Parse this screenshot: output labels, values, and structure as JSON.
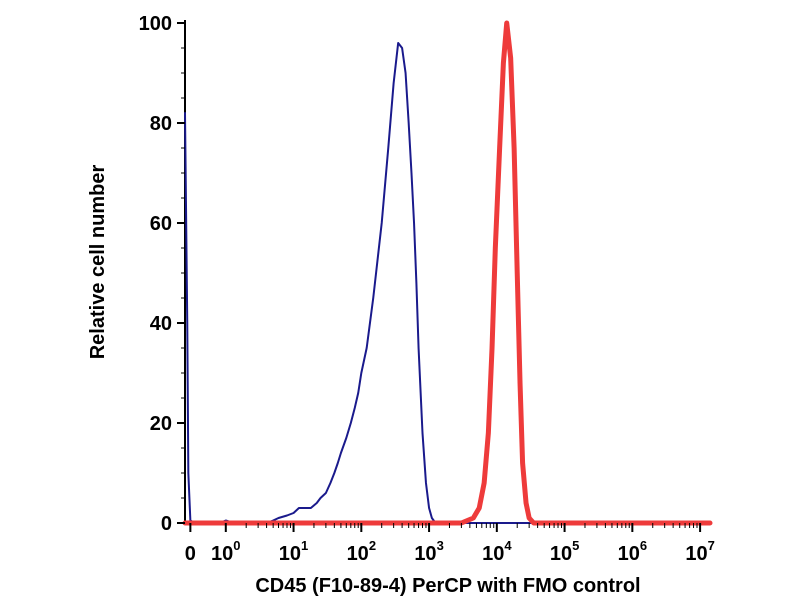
{
  "chart_data": {
    "type": "line",
    "title": "",
    "xlabel": "CD45 (F10-89-4) PerCP with FMO control",
    "ylabel": "Relative cell number",
    "x_scale": "log",
    "xlim": [
      0.25,
      14000000
    ],
    "ylim": [
      0,
      100
    ],
    "x_ticks": [
      {
        "base": "0",
        "exp": "",
        "value": 0.3
      },
      {
        "base": "10",
        "exp": "0",
        "value": 1
      },
      {
        "base": "10",
        "exp": "1",
        "value": 10
      },
      {
        "base": "10",
        "exp": "2",
        "value": 100
      },
      {
        "base": "10",
        "exp": "3",
        "value": 1000
      },
      {
        "base": "10",
        "exp": "4",
        "value": 10000
      },
      {
        "base": "10",
        "exp": "5",
        "value": 100000
      },
      {
        "base": "10",
        "exp": "6",
        "value": 1000000
      },
      {
        "base": "10",
        "exp": "7",
        "value": 10000000
      }
    ],
    "y_ticks": [
      "0",
      "20",
      "40",
      "60",
      "80",
      "100"
    ],
    "grid": false,
    "legend": "none",
    "series": [
      {
        "color": "#1a1a8c",
        "stroke": "thin",
        "x": [
          0.25,
          0.27,
          0.28,
          0.3,
          0.35,
          0.5,
          0.8,
          1.0,
          1.3,
          2,
          3,
          4,
          5,
          6,
          8,
          10,
          12,
          14,
          18,
          22,
          25,
          30,
          35,
          40,
          45,
          50,
          60,
          70,
          80,
          90,
          100,
          120,
          150,
          200,
          250,
          300,
          350,
          400,
          450,
          500,
          550,
          600,
          650,
          700,
          800,
          900,
          1000,
          1100,
          1200,
          1400,
          1700,
          2000,
          14000000
        ],
        "y": [
          82,
          40,
          10,
          0.5,
          0,
          0,
          0,
          0.5,
          0,
          0,
          0,
          0,
          0.5,
          1,
          1.5,
          2,
          3,
          3,
          3,
          4,
          5,
          6,
          8,
          10,
          12,
          14,
          17,
          20,
          23,
          26,
          30,
          35,
          45,
          60,
          75,
          88,
          96,
          95,
          90,
          80,
          70,
          60,
          48,
          35,
          18,
          8,
          3,
          1,
          0.3,
          0,
          0,
          0,
          0
        ]
      },
      {
        "color": "#ee3b3b",
        "stroke": "thick",
        "x": [
          0.25,
          1000,
          3000,
          4500,
          5500,
          6500,
          7500,
          8500,
          9500,
          11000,
          12500,
          14000,
          16000,
          18000,
          20000,
          22000,
          24000,
          27000,
          30000,
          35000,
          14000000
        ],
        "y": [
          0,
          0,
          0,
          1,
          3,
          8,
          18,
          35,
          55,
          75,
          92,
          100,
          93,
          75,
          50,
          28,
          12,
          4,
          1,
          0,
          0
        ]
      }
    ]
  }
}
